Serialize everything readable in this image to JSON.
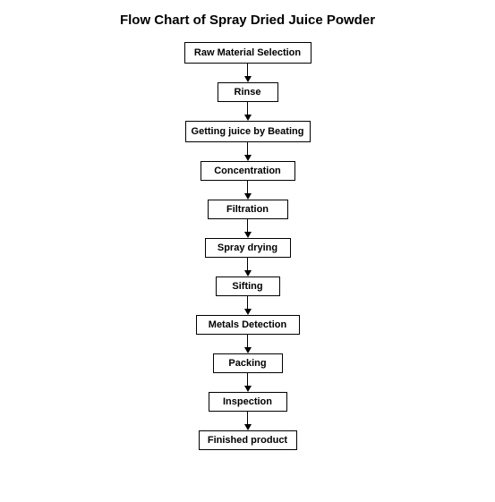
{
  "title": "Flow Chart of Spray Dried Juice Powder",
  "title_fontsize": 15,
  "title_color": "#000000",
  "background_color": "#ffffff",
  "node_border_color": "#000000",
  "node_text_color": "#000000",
  "arrow_color": "#000000",
  "node_font_weight": "bold",
  "flowchart": {
    "type": "flowchart",
    "direction": "vertical",
    "nodes": [
      {
        "label": "Raw Material Selection",
        "width": 142,
        "height": 24,
        "fontsize": 11
      },
      {
        "label": "Rinse",
        "width": 68,
        "height": 22,
        "fontsize": 11
      },
      {
        "label": "Getting juice by Beating",
        "width": 140,
        "height": 24,
        "fontsize": 11
      },
      {
        "label": "Concentration",
        "width": 106,
        "height": 22,
        "fontsize": 11
      },
      {
        "label": "Filtration",
        "width": 90,
        "height": 22,
        "fontsize": 11
      },
      {
        "label": "Spray drying",
        "width": 96,
        "height": 22,
        "fontsize": 11
      },
      {
        "label": "Sifting",
        "width": 72,
        "height": 22,
        "fontsize": 11
      },
      {
        "label": "Metals Detection",
        "width": 116,
        "height": 22,
        "fontsize": 11
      },
      {
        "label": "Packing",
        "width": 78,
        "height": 22,
        "fontsize": 11
      },
      {
        "label": "Inspection",
        "width": 88,
        "height": 22,
        "fontsize": 11
      },
      {
        "label": "Finished product",
        "width": 110,
        "height": 22,
        "fontsize": 11
      }
    ],
    "arrow_line_height": 14,
    "arrow_head_size": 7
  }
}
